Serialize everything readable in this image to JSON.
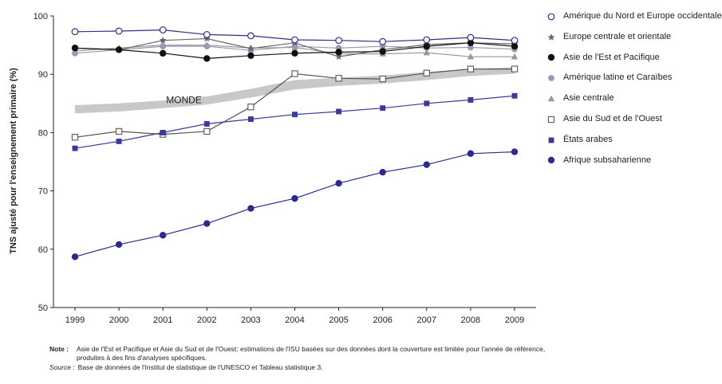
{
  "chart_data": {
    "type": "line",
    "title": "",
    "xlabel": "",
    "ylabel": "TNS ajusté pour l'enseignement primaire (%)",
    "x": [
      1999,
      2000,
      2001,
      2002,
      2003,
      2004,
      2005,
      2006,
      2007,
      2008,
      2009
    ],
    "yticks": [
      50,
      60,
      70,
      80,
      90,
      100
    ],
    "ylim": [
      50,
      100
    ],
    "grid": false,
    "legend_position": "right",
    "band": {
      "name": "MONDE",
      "lower": [
        83.3,
        83.6,
        84.2,
        84.8,
        86.0,
        87.4,
        88.0,
        88.4,
        89.0,
        89.7,
        90.1
      ],
      "upper": [
        84.7,
        85.0,
        85.5,
        86.2,
        87.5,
        89.0,
        89.4,
        89.8,
        90.4,
        90.9,
        91.2
      ],
      "color": "#c8c8c8"
    },
    "series": [
      {
        "name": "Amérique du Nord et Europe occidentale",
        "marker": "open-circle",
        "color": "#2e2e8a",
        "values": [
          97.3,
          97.4,
          97.6,
          96.8,
          96.6,
          95.9,
          95.8,
          95.6,
          95.9,
          96.3,
          95.8
        ]
      },
      {
        "name": "Europe centrale et orientale",
        "marker": "star",
        "color": "#666666",
        "values": [
          94.5,
          94.2,
          95.8,
          96.1,
          94.4,
          95.4,
          93.0,
          94.2,
          95.1,
          95.4,
          95.2
        ]
      },
      {
        "name": "Asie de l'Est et Pacifique",
        "marker": "filled-circle",
        "color": "#111111",
        "values": [
          94.5,
          94.2,
          93.6,
          92.7,
          93.2,
          93.6,
          93.8,
          93.9,
          94.8,
          95.4,
          94.8
        ]
      },
      {
        "name": "Amérique latine et Caraïbes",
        "marker": "grey-circle",
        "color": "#9a9ab8",
        "values": [
          93.6,
          94.2,
          94.8,
          94.8,
          94.1,
          94.8,
          94.5,
          94.8,
          94.5,
          94.6,
          94.3
        ]
      },
      {
        "name": "Asie centrale",
        "marker": "triangle",
        "color": "#999999",
        "values": [
          94.0,
          94.5,
          95.0,
          95.0,
          94.5,
          94.6,
          93.5,
          93.5,
          93.7,
          93.0,
          93.0
        ]
      },
      {
        "name": "Asie du Sud et de l'Ouest",
        "marker": "open-square",
        "color": "#555555",
        "values": [
          79.2,
          80.2,
          79.7,
          80.2,
          84.4,
          90.1,
          89.3,
          89.2,
          90.2,
          90.9,
          90.9
        ]
      },
      {
        "name": "États arabes",
        "marker": "filled-square",
        "color": "#3a3a9a",
        "values": [
          77.3,
          78.5,
          80.0,
          81.5,
          82.3,
          83.1,
          83.6,
          84.2,
          85.0,
          85.6,
          86.3
        ]
      },
      {
        "name": "Afrique subsaharienne",
        "marker": "filled-circle-blue",
        "color": "#2b2b8f",
        "values": [
          58.7,
          60.8,
          62.4,
          64.4,
          67.0,
          68.7,
          71.3,
          73.2,
          74.5,
          76.4,
          76.7
        ]
      }
    ]
  },
  "notes": {
    "note_key": "Note :",
    "note_text": "Asie de l'Est et Pacifique et Asie du Sud et de l'Ouest: estimations de l'ISU basées sur des données dont la couverture est limitée pour l'année de référence, produites à des fins d'analyses spécifiques.",
    "source_key": "Source :",
    "source_text": "Base de données de l'Institut de statistique de l'UNESCO et Tableau statistique 3."
  }
}
